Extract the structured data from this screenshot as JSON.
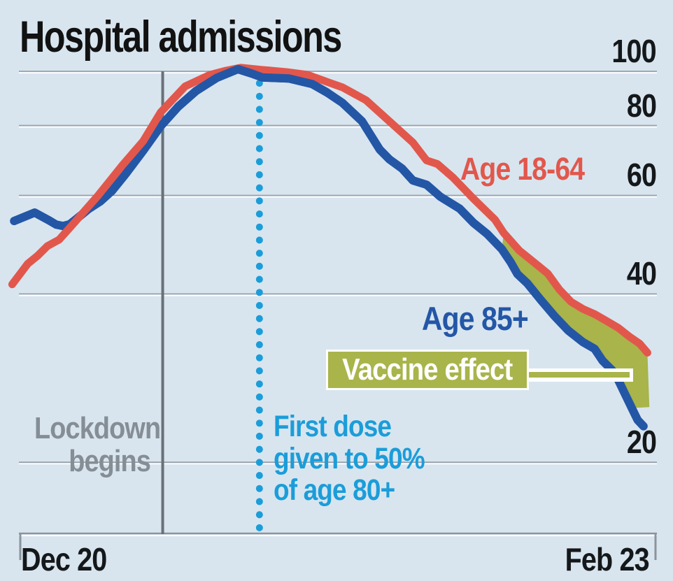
{
  "chart_data": {
    "type": "line",
    "title": "Hospital admissions",
    "x_axis": {
      "start_label": "Dec 20",
      "end_label": "Feb 23",
      "span_days": 65
    },
    "y_axis": {
      "scale": "log",
      "ticks": [
        100,
        80,
        60,
        40,
        20
      ]
    },
    "series": [
      {
        "name": "Age 18-64",
        "color": "#e2574c",
        "points": [
          [
            -0.9,
            41.6
          ],
          [
            0.7,
            45.3
          ],
          [
            1.7,
            46.8
          ],
          [
            2.7,
            48.7
          ],
          [
            3.9,
            50
          ],
          [
            5.2,
            53
          ],
          [
            7.9,
            60
          ],
          [
            10.4,
            68
          ],
          [
            12.5,
            75
          ],
          [
            14.3,
            84.5
          ],
          [
            16.8,
            94
          ],
          [
            19.3,
            98.5
          ],
          [
            21,
            100.3
          ],
          [
            22.5,
            101.5
          ],
          [
            24.7,
            100.6
          ],
          [
            27.2,
            99.7
          ],
          [
            29.3,
            98.6
          ],
          [
            31.5,
            95.5
          ],
          [
            32.9,
            93.6
          ],
          [
            35.3,
            88.8
          ],
          [
            37.7,
            81.4
          ],
          [
            40.1,
            74.6
          ],
          [
            41.5,
            69.3
          ],
          [
            42.6,
            68.3
          ],
          [
            44.2,
            64.6
          ],
          [
            46.3,
            59.2
          ],
          [
            48.5,
            54.3
          ],
          [
            49.4,
            51.4
          ],
          [
            51,
            47.8
          ],
          [
            52.8,
            45.1
          ],
          [
            53.9,
            43.5
          ],
          [
            55.1,
            40.7
          ],
          [
            56.3,
            38.7
          ],
          [
            57.5,
            37.6
          ],
          [
            58.7,
            36.8
          ],
          [
            59.9,
            35.8
          ],
          [
            61.1,
            34.8
          ],
          [
            62.3,
            33.5
          ],
          [
            63.3,
            32.6
          ],
          [
            64.1,
            31.4
          ]
        ]
      },
      {
        "name": "Age 85+",
        "color": "#2456a6",
        "points": [
          [
            -0.7,
            54
          ],
          [
            1.4,
            55.9
          ],
          [
            2.9,
            54.1
          ],
          [
            3.6,
            53.2
          ],
          [
            4.3,
            52.9
          ],
          [
            5,
            53.3
          ],
          [
            5.7,
            54.5
          ],
          [
            6.9,
            56.7
          ],
          [
            8.1,
            58.5
          ],
          [
            9.3,
            61.1
          ],
          [
            10.7,
            65.5
          ],
          [
            12.5,
            72.1
          ],
          [
            14.3,
            79.8
          ],
          [
            16.1,
            86.5
          ],
          [
            17.9,
            92.2
          ],
          [
            20,
            97.3
          ],
          [
            22.2,
            100.9
          ],
          [
            23.6,
            99.1
          ],
          [
            24.7,
            97.5
          ],
          [
            26,
            97.3
          ],
          [
            27.4,
            97.1
          ],
          [
            29.8,
            94.9
          ],
          [
            31.3,
            91.7
          ],
          [
            32.9,
            87.8
          ],
          [
            34.9,
            81.4
          ],
          [
            36.7,
            72.5
          ],
          [
            37.7,
            69.6
          ],
          [
            39,
            67
          ],
          [
            40.1,
            63.8
          ],
          [
            41.5,
            62.7
          ],
          [
            42.9,
            59.7
          ],
          [
            44.9,
            56.8
          ],
          [
            46.3,
            53.6
          ],
          [
            47.7,
            51.2
          ],
          [
            49.2,
            48.1
          ],
          [
            50.1,
            45.6
          ],
          [
            50.8,
            43.4
          ],
          [
            51.8,
            41.8
          ],
          [
            53.2,
            39
          ],
          [
            54.6,
            36.5
          ],
          [
            56,
            34.4
          ],
          [
            57.5,
            32.8
          ],
          [
            58.7,
            31.9
          ],
          [
            59.5,
            30.4
          ],
          [
            60.5,
            29.2
          ],
          [
            61.1,
            28.1
          ],
          [
            61.8,
            26.5
          ],
          [
            62.5,
            25
          ],
          [
            63.1,
            23.8
          ],
          [
            63.7,
            23.2
          ]
        ]
      }
    ],
    "vaccine_effect_fill": {
      "color": "#a9b44a",
      "from_day": 49.2
    },
    "annotations": {
      "lockdown": {
        "line1": "Lockdown",
        "line2": "begins",
        "day": 14.5
      },
      "first_dose": {
        "lines": [
          "First dose",
          "given to 50%",
          "of age 80+"
        ],
        "day": 24.4,
        "color": "#1b9dd9"
      },
      "vaccine_effect_label": "Vaccine effect",
      "series_label_red": "Age 18-64",
      "series_label_blue": "Age 85+"
    }
  }
}
